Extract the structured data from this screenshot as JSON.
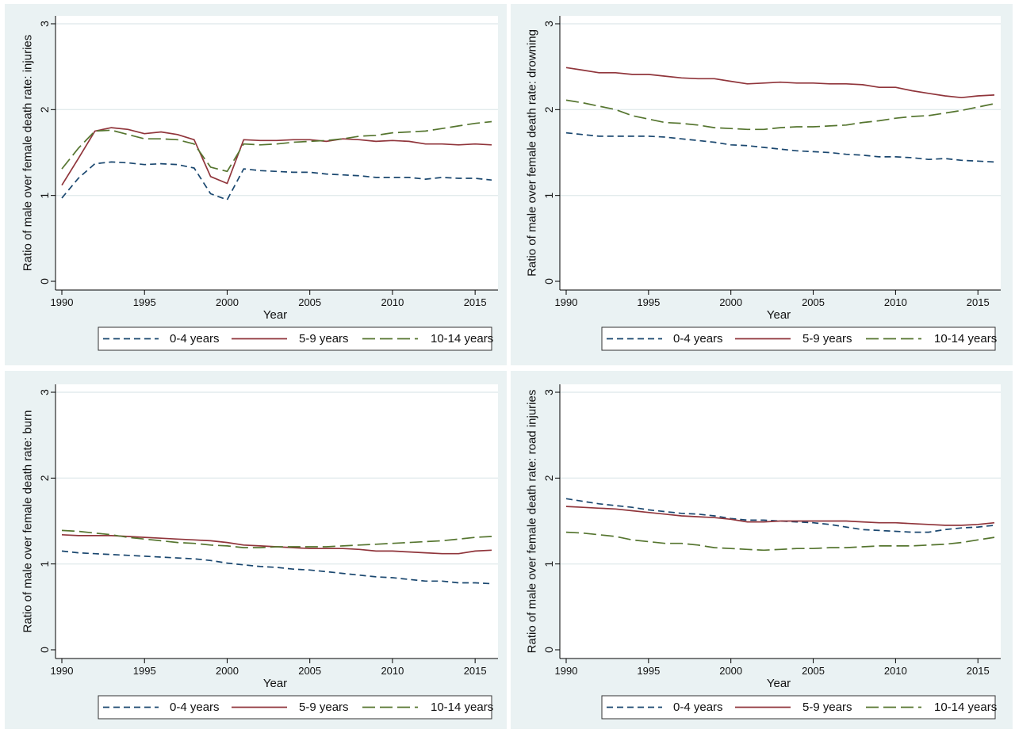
{
  "colors": {
    "panel_bg": "#eaf2f3",
    "plot_bg": "#ffffff",
    "grid": "#e3ebed",
    "axis": "#000000",
    "series_0_4": "#1a476f",
    "series_5_9": "#90353b",
    "series_10_14": "#55752f"
  },
  "chart_data": [
    {
      "type": "line",
      "title": "",
      "xlabel": "Year",
      "ylabel": "Ratio of male over female death rate: injuries",
      "xlim": [
        1990,
        2016
      ],
      "ylim": [
        0,
        3
      ],
      "x_ticks": [
        "1990",
        "1995",
        "2000",
        "2005",
        "2010",
        "2015"
      ],
      "y_ticks": [
        "0",
        "1",
        "2",
        "3"
      ],
      "grid": true,
      "legend_position": "bottom",
      "x": [
        1990,
        1991,
        1992,
        1993,
        1994,
        1995,
        1996,
        1997,
        1998,
        1999,
        2000,
        2001,
        2002,
        2003,
        2004,
        2005,
        2006,
        2007,
        2008,
        2009,
        2010,
        2011,
        2012,
        2013,
        2014,
        2015,
        2016
      ],
      "series": [
        {
          "name": "0-4 years",
          "style": "short-dash",
          "color": "#1a476f",
          "values": [
            0.97,
            1.2,
            1.37,
            1.39,
            1.38,
            1.36,
            1.37,
            1.36,
            1.32,
            1.02,
            0.95,
            1.31,
            1.29,
            1.28,
            1.27,
            1.27,
            1.25,
            1.24,
            1.23,
            1.21,
            1.21,
            1.21,
            1.19,
            1.21,
            1.2,
            1.2,
            1.18
          ]
        },
        {
          "name": "5-9 years",
          "style": "solid",
          "color": "#90353b",
          "values": [
            1.12,
            1.43,
            1.75,
            1.79,
            1.77,
            1.72,
            1.74,
            1.71,
            1.65,
            1.22,
            1.14,
            1.65,
            1.64,
            1.64,
            1.65,
            1.65,
            1.63,
            1.66,
            1.65,
            1.63,
            1.64,
            1.63,
            1.6,
            1.6,
            1.59,
            1.6,
            1.59
          ]
        },
        {
          "name": "10-14 years",
          "style": "long-dash",
          "color": "#55752f",
          "values": [
            1.31,
            1.55,
            1.75,
            1.76,
            1.71,
            1.66,
            1.66,
            1.65,
            1.6,
            1.33,
            1.28,
            1.6,
            1.59,
            1.6,
            1.62,
            1.63,
            1.64,
            1.66,
            1.69,
            1.7,
            1.73,
            1.74,
            1.75,
            1.78,
            1.81,
            1.84,
            1.86
          ]
        }
      ]
    },
    {
      "type": "line",
      "title": "",
      "xlabel": "Year",
      "ylabel": "Ratio of male over female death rate: drowning",
      "xlim": [
        1990,
        2016
      ],
      "ylim": [
        0,
        3
      ],
      "x_ticks": [
        "1990",
        "1995",
        "2000",
        "2005",
        "2010",
        "2015"
      ],
      "y_ticks": [
        "0",
        "1",
        "2",
        "3"
      ],
      "grid": true,
      "legend_position": "bottom",
      "x": [
        1990,
        1991,
        1992,
        1993,
        1994,
        1995,
        1996,
        1997,
        1998,
        1999,
        2000,
        2001,
        2002,
        2003,
        2004,
        2005,
        2006,
        2007,
        2008,
        2009,
        2010,
        2011,
        2012,
        2013,
        2014,
        2015,
        2016
      ],
      "series": [
        {
          "name": "0-4 years",
          "style": "short-dash",
          "color": "#1a476f",
          "values": [
            1.73,
            1.71,
            1.69,
            1.69,
            1.69,
            1.69,
            1.68,
            1.66,
            1.64,
            1.62,
            1.59,
            1.58,
            1.56,
            1.54,
            1.52,
            1.51,
            1.5,
            1.48,
            1.47,
            1.45,
            1.45,
            1.44,
            1.42,
            1.43,
            1.41,
            1.4,
            1.39
          ]
        },
        {
          "name": "5-9 years",
          "style": "solid",
          "color": "#90353b",
          "values": [
            2.49,
            2.46,
            2.43,
            2.43,
            2.41,
            2.41,
            2.39,
            2.37,
            2.36,
            2.36,
            2.33,
            2.3,
            2.31,
            2.32,
            2.31,
            2.31,
            2.3,
            2.3,
            2.29,
            2.26,
            2.26,
            2.22,
            2.19,
            2.16,
            2.14,
            2.16,
            2.17
          ]
        },
        {
          "name": "10-14 years",
          "style": "long-dash",
          "color": "#55752f",
          "values": [
            2.11,
            2.08,
            2.04,
            2.0,
            1.93,
            1.89,
            1.85,
            1.84,
            1.82,
            1.79,
            1.78,
            1.77,
            1.77,
            1.79,
            1.8,
            1.8,
            1.81,
            1.82,
            1.85,
            1.87,
            1.9,
            1.92,
            1.93,
            1.96,
            1.99,
            2.03,
            2.07
          ]
        }
      ]
    },
    {
      "type": "line",
      "title": "",
      "xlabel": "Year",
      "ylabel": "Ratio of male over female death rate: burn",
      "xlim": [
        1990,
        2016
      ],
      "ylim": [
        0,
        3
      ],
      "x_ticks": [
        "1990",
        "1995",
        "2000",
        "2005",
        "2010",
        "2015"
      ],
      "y_ticks": [
        "0",
        "1",
        "2",
        "3"
      ],
      "grid": true,
      "legend_position": "bottom",
      "x": [
        1990,
        1991,
        1992,
        1993,
        1994,
        1995,
        1996,
        1997,
        1998,
        1999,
        2000,
        2001,
        2002,
        2003,
        2004,
        2005,
        2006,
        2007,
        2008,
        2009,
        2010,
        2011,
        2012,
        2013,
        2014,
        2015,
        2016
      ],
      "series": [
        {
          "name": "0-4 years",
          "style": "short-dash",
          "color": "#1a476f",
          "values": [
            1.15,
            1.13,
            1.12,
            1.11,
            1.1,
            1.09,
            1.08,
            1.07,
            1.06,
            1.04,
            1.01,
            0.99,
            0.97,
            0.96,
            0.94,
            0.93,
            0.91,
            0.89,
            0.87,
            0.85,
            0.84,
            0.82,
            0.8,
            0.8,
            0.78,
            0.78,
            0.77
          ]
        },
        {
          "name": "5-9 years",
          "style": "solid",
          "color": "#90353b",
          "values": [
            1.34,
            1.33,
            1.33,
            1.33,
            1.32,
            1.31,
            1.3,
            1.29,
            1.28,
            1.27,
            1.25,
            1.22,
            1.21,
            1.2,
            1.19,
            1.18,
            1.18,
            1.18,
            1.17,
            1.15,
            1.15,
            1.14,
            1.13,
            1.12,
            1.12,
            1.15,
            1.16
          ]
        },
        {
          "name": "10-14 years",
          "style": "long-dash",
          "color": "#55752f",
          "values": [
            1.39,
            1.38,
            1.36,
            1.34,
            1.31,
            1.29,
            1.27,
            1.25,
            1.24,
            1.22,
            1.21,
            1.19,
            1.19,
            1.2,
            1.2,
            1.2,
            1.2,
            1.21,
            1.22,
            1.23,
            1.24,
            1.25,
            1.26,
            1.27,
            1.29,
            1.31,
            1.32
          ]
        }
      ]
    },
    {
      "type": "line",
      "title": "",
      "xlabel": "Year",
      "ylabel": "Ratio of male over female death rate: road injuries",
      "xlim": [
        1990,
        2016
      ],
      "ylim": [
        0,
        3
      ],
      "x_ticks": [
        "1990",
        "1995",
        "2000",
        "2005",
        "2010",
        "2015"
      ],
      "y_ticks": [
        "0",
        "1",
        "2",
        "3"
      ],
      "grid": true,
      "legend_position": "bottom",
      "x": [
        1990,
        1991,
        1992,
        1993,
        1994,
        1995,
        1996,
        1997,
        1998,
        1999,
        2000,
        2001,
        2002,
        2003,
        2004,
        2005,
        2006,
        2007,
        2008,
        2009,
        2010,
        2011,
        2012,
        2013,
        2014,
        2015,
        2016
      ],
      "series": [
        {
          "name": "0-4 years",
          "style": "short-dash",
          "color": "#1a476f",
          "values": [
            1.76,
            1.73,
            1.7,
            1.68,
            1.66,
            1.63,
            1.61,
            1.59,
            1.58,
            1.56,
            1.53,
            1.51,
            1.51,
            1.5,
            1.49,
            1.48,
            1.46,
            1.43,
            1.4,
            1.39,
            1.38,
            1.37,
            1.37,
            1.4,
            1.42,
            1.43,
            1.45
          ]
        },
        {
          "name": "5-9 years",
          "style": "solid",
          "color": "#90353b",
          "values": [
            1.67,
            1.66,
            1.65,
            1.64,
            1.62,
            1.6,
            1.58,
            1.56,
            1.55,
            1.54,
            1.52,
            1.49,
            1.49,
            1.5,
            1.5,
            1.5,
            1.5,
            1.5,
            1.49,
            1.48,
            1.48,
            1.47,
            1.46,
            1.45,
            1.45,
            1.46,
            1.48
          ]
        },
        {
          "name": "10-14 years",
          "style": "long-dash",
          "color": "#55752f",
          "values": [
            1.37,
            1.36,
            1.34,
            1.32,
            1.28,
            1.26,
            1.24,
            1.24,
            1.22,
            1.19,
            1.18,
            1.17,
            1.16,
            1.17,
            1.18,
            1.18,
            1.19,
            1.19,
            1.2,
            1.21,
            1.21,
            1.21,
            1.22,
            1.23,
            1.25,
            1.28,
            1.31
          ]
        }
      ]
    }
  ]
}
